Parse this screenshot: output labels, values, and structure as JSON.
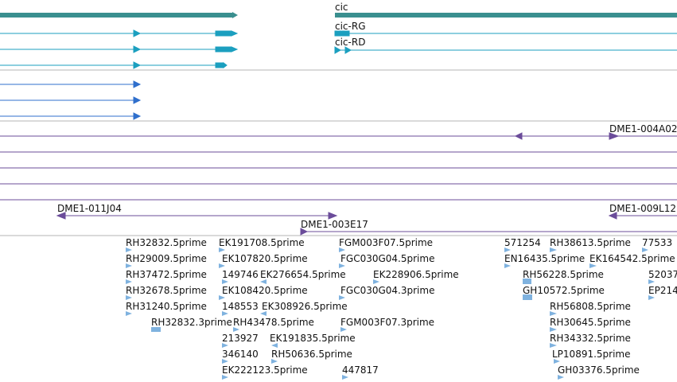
{
  "colors": {
    "gene": "#3a8f8f",
    "transcript": "#1b9fbf",
    "transcript_dark": "#2f6fcc",
    "clone": "#6b4c9a",
    "est": "#7fb2df",
    "divider": "#b5b5b5"
  },
  "tracks": {
    "gene_label": "cic",
    "transcript_labels": [
      "cic-RG",
      "cic-RD"
    ],
    "clone_labels": [
      "DME1-004A02",
      "DME1-011J04",
      "DME1-003E17",
      "DME1-009L12"
    ],
    "est_labels": [
      "RH32832.5prime",
      "EK191708.5prime",
      "FGM003F07.5prime",
      "571254",
      "RH38613.5prime",
      "77533",
      "RH29009.5prime",
      "EK107820.5prime",
      "FGC030G04.5prime",
      "EN16435.5prime",
      "EK164542.5prime",
      "RH37472.5prime",
      "149746",
      "EK276654.5prime",
      "EK228906.5prime",
      "RH56228.5prime",
      "52037",
      "RH32678.5prime",
      "EK108420.5prime",
      "FGC030G04.3prime",
      "GH10572.5prime",
      "EP214",
      "RH31240.5prime",
      "148553",
      "EK308926.5prime",
      "RH56808.5prime",
      "RH32832.3prime",
      "RH43478.5prime",
      "FGM003F07.3prime",
      "RH30645.5prime",
      "213927",
      "EK191835.5prime",
      "RH34332.5prime",
      "346140",
      "RH50636.5prime",
      "LP10891.5prime",
      "EK222123.5prime",
      "447817",
      "GH03376.5prime"
    ]
  }
}
